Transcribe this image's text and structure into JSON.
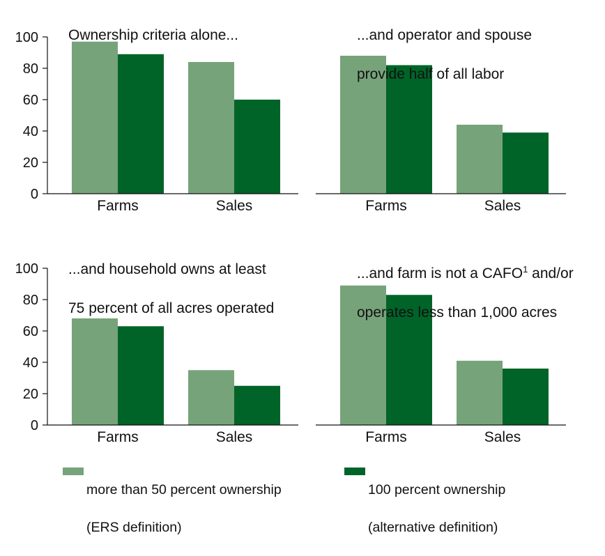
{
  "colors": {
    "light": "#77a37a",
    "dark": "#006428",
    "axis": "#111111"
  },
  "chart_data": {
    "type": "bar",
    "ylim": [
      0,
      100
    ],
    "yticks": [
      0,
      20,
      40,
      60,
      80,
      100
    ],
    "legend": {
      "light": {
        "line1": "more than 50 percent ownership",
        "line2": "(ERS definition)"
      },
      "dark": {
        "line1": "100 percent ownership",
        "line2": "(alternative definition)"
      }
    },
    "panels": [
      {
        "title": "Ownership criteria alone...",
        "title2": "",
        "categories": [
          "Farms",
          "Sales"
        ],
        "series": [
          {
            "values": [
              97,
              84
            ]
          },
          {
            "values": [
              89,
              60
            ]
          }
        ]
      },
      {
        "title": "...and operator and spouse",
        "title2": "provide half of all labor",
        "categories": [
          "Farms",
          "Sales"
        ],
        "series": [
          {
            "values": [
              88,
              44
            ]
          },
          {
            "values": [
              82,
              39
            ]
          }
        ]
      },
      {
        "title": "...and household owns at least",
        "title2": "75 percent of all acres operated",
        "categories": [
          "Farms",
          "Sales"
        ],
        "series": [
          {
            "values": [
              68,
              35
            ]
          },
          {
            "values": [
              63,
              25
            ]
          }
        ]
      },
      {
        "title": "...and farm is not a CAFO",
        "title_sup": "1",
        "title_after": " and/or",
        "title2": "operates less than 1,000 acres",
        "categories": [
          "Farms",
          "Sales"
        ],
        "series": [
          {
            "values": [
              89,
              41
            ]
          },
          {
            "values": [
              83,
              36
            ]
          }
        ]
      }
    ]
  }
}
